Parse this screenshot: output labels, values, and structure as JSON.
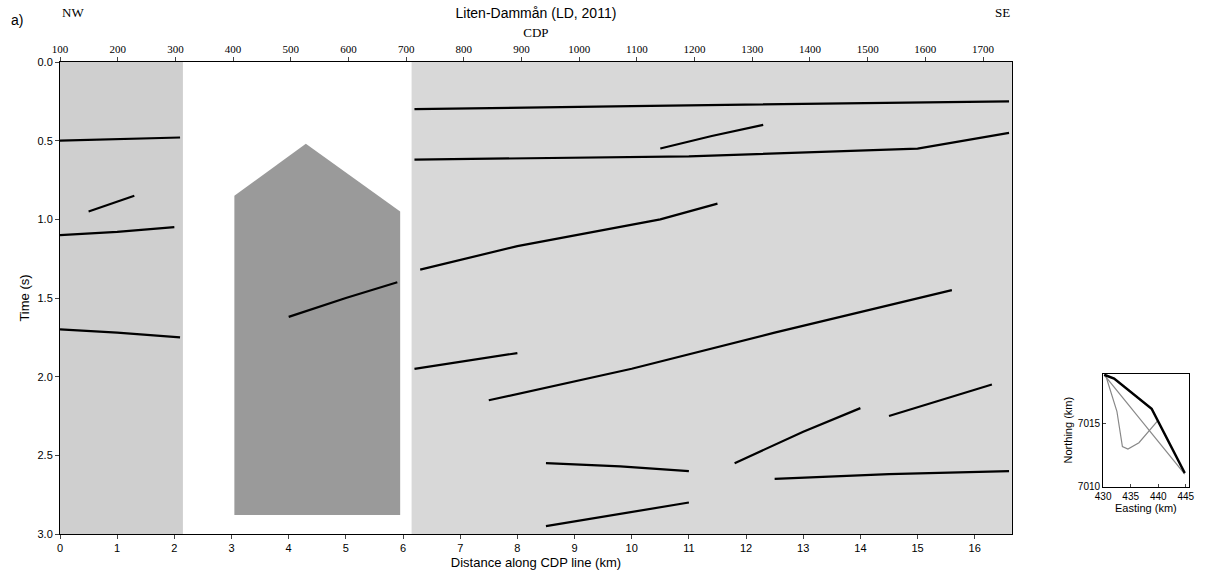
{
  "chart_data": [
    {
      "type": "line",
      "panel_label": "a)",
      "title": "Liten-Dammån (LD, 2011)",
      "x_label": "Distance along CDP line (km)",
      "y_label": "Time (s)",
      "x2_label": "CDP",
      "annotations": [
        {
          "text": "NW"
        },
        {
          "text": "SE"
        }
      ],
      "xlim": [
        0,
        16.65
      ],
      "xticks": [
        0,
        1,
        2,
        3,
        4,
        5,
        6,
        7,
        8,
        9,
        10,
        11,
        12,
        13,
        14,
        15,
        16
      ],
      "x2lim": [
        100,
        1750
      ],
      "x2ticks": [
        100,
        200,
        300,
        400,
        500,
        600,
        700,
        800,
        900,
        1000,
        1100,
        1200,
        1300,
        1400,
        1500,
        1600,
        1700
      ],
      "ylim": [
        3,
        0
      ],
      "yticks": [
        {
          "value": 0,
          "label": "0.0"
        },
        {
          "value": 0.5,
          "label": "0.5"
        },
        {
          "value": 1,
          "label": "1.0"
        },
        {
          "value": 1.5,
          "label": "1.5"
        },
        {
          "value": 2,
          "label": "2.0"
        },
        {
          "value": 2.5,
          "label": "2.5"
        },
        {
          "value": 3,
          "label": "3.0"
        }
      ],
      "series": [
        {
          "type": "area",
          "color": "#cfcfcf",
          "x": [
            0,
            2.15,
            2.15,
            0,
            0
          ],
          "values": [
            0,
            0,
            3,
            3,
            0
          ]
        },
        {
          "type": "area",
          "color": "#9a9a9a",
          "x": [
            3.05,
            3.05,
            4.3,
            5.95,
            5.95,
            3.05
          ],
          "values": [
            2.88,
            0.85,
            0.52,
            0.95,
            2.88,
            2.88
          ]
        },
        {
          "type": "area",
          "color": "#d8d8d8",
          "x": [
            6.15,
            16.65,
            16.65,
            6.15,
            6.15
          ],
          "values": [
            0,
            0,
            3,
            3,
            0
          ]
        },
        {
          "type": "line",
          "color": "#000000",
          "x": [
            0,
            1,
            2.1
          ],
          "values": [
            0.5,
            0.49,
            0.48
          ]
        },
        {
          "type": "line",
          "color": "#000000",
          "x": [
            0.5,
            0.9,
            1.3
          ],
          "values": [
            0.95,
            0.9,
            0.85
          ]
        },
        {
          "type": "line",
          "color": "#000000",
          "x": [
            0,
            1,
            2.0
          ],
          "values": [
            1.1,
            1.08,
            1.05
          ]
        },
        {
          "type": "line",
          "color": "#000000",
          "x": [
            0,
            1,
            2.1
          ],
          "values": [
            1.7,
            1.72,
            1.75
          ]
        },
        {
          "type": "line",
          "color": "#000000",
          "x": [
            4.0,
            5.0,
            5.9
          ],
          "values": [
            1.62,
            1.5,
            1.4
          ]
        },
        {
          "type": "line",
          "color": "#000000",
          "x": [
            6.2,
            10,
            16.6
          ],
          "values": [
            0.3,
            0.28,
            0.25
          ]
        },
        {
          "type": "line",
          "color": "#000000",
          "x": [
            6.2,
            11,
            15,
            16.6
          ],
          "values": [
            0.62,
            0.6,
            0.55,
            0.45
          ]
        },
        {
          "type": "line",
          "color": "#000000",
          "x": [
            10.5,
            11.4,
            12.3
          ],
          "values": [
            0.55,
            0.47,
            0.4
          ]
        },
        {
          "type": "line",
          "color": "#000000",
          "x": [
            6.3,
            8,
            10.5,
            11.5
          ],
          "values": [
            1.32,
            1.17,
            1.0,
            0.9
          ]
        },
        {
          "type": "line",
          "color": "#000000",
          "x": [
            6.2,
            7.1,
            8
          ],
          "values": [
            1.95,
            1.9,
            1.85
          ]
        },
        {
          "type": "line",
          "color": "#000000",
          "x": [
            7.5,
            10,
            12.5,
            15.6
          ],
          "values": [
            2.15,
            1.95,
            1.72,
            1.45
          ]
        },
        {
          "type": "line",
          "color": "#000000",
          "x": [
            8.5,
            9.8,
            11
          ],
          "values": [
            2.55,
            2.57,
            2.6
          ]
        },
        {
          "type": "line",
          "color": "#000000",
          "x": [
            11.8,
            13,
            14
          ],
          "values": [
            2.55,
            2.35,
            2.2
          ]
        },
        {
          "type": "line",
          "color": "#000000",
          "x": [
            12.5,
            14.5,
            16.6
          ],
          "values": [
            2.65,
            2.62,
            2.6
          ]
        },
        {
          "type": "line",
          "color": "#000000",
          "x": [
            14.5,
            15.4,
            16.3
          ],
          "values": [
            2.25,
            2.15,
            2.05
          ]
        },
        {
          "type": "line",
          "color": "#000000",
          "x": [
            8.5,
            9.8,
            11
          ],
          "values": [
            2.95,
            2.87,
            2.8
          ]
        }
      ]
    },
    {
      "type": "line",
      "x_label": "Easting (km)",
      "y_label": "Northing (km)",
      "xlim": [
        430,
        445.5
      ],
      "xticks": [
        430,
        435,
        440,
        445
      ],
      "ylim": [
        7010,
        7019
      ],
      "yticks": [
        7010,
        7015
      ],
      "series": [
        {
          "color": "#888888",
          "x": [
            430.2,
            444.8
          ],
          "values": [
            7018.9,
            7011.0
          ]
        },
        {
          "color": "#888888",
          "x": [
            430.5,
            432.5,
            433.5,
            434.5,
            436.5,
            438.5,
            440
          ],
          "values": [
            7018.8,
            7016,
            7013.2,
            7013,
            7013.5,
            7014.5,
            7015.3
          ]
        },
        {
          "color": "#000000",
          "x": [
            430.2,
            432,
            438.8,
            444.8
          ],
          "values": [
            7018.9,
            7018.6,
            7016.2,
            7011.1
          ]
        }
      ]
    }
  ]
}
